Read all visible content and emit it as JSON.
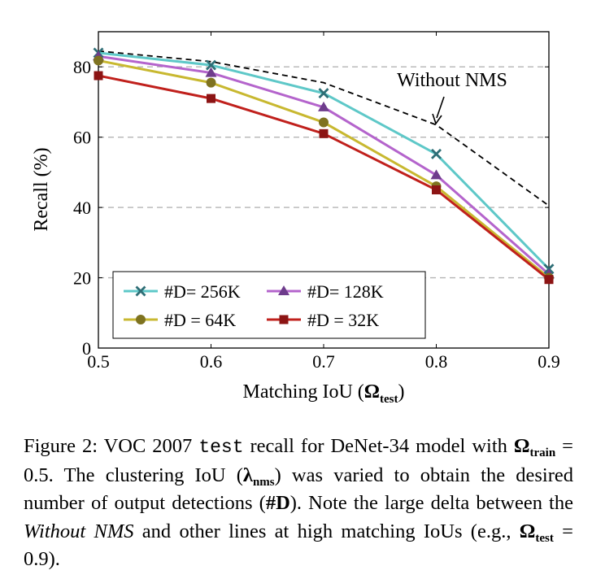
{
  "chart_data": {
    "type": "line",
    "xlabel_main": "Matching IoU (",
    "xlabel_symbol": "Ω",
    "xlabel_sub": "test",
    "xlabel_close": ")",
    "ylabel": "Recall (%)",
    "x": [
      0.5,
      0.6,
      0.7,
      0.8,
      0.9
    ],
    "x_tick_labels": [
      "0.5",
      "0.6",
      "0.7",
      "0.8",
      "0.9"
    ],
    "y_ticks": [
      0,
      20,
      40,
      60,
      80
    ],
    "xlim": [
      0.5,
      0.9
    ],
    "ylim": [
      0,
      90
    ],
    "grid": "horizontal dashed at y ticks",
    "legend_position": "bottom-left",
    "series": [
      {
        "name": "#D= 256K",
        "color": "#5ec8c8",
        "marker": "x",
        "values": [
          84.0,
          80.5,
          72.5,
          55.2,
          22.5
        ]
      },
      {
        "name": "#D= 128K",
        "color": "#b464cc",
        "marker": "triangle",
        "values": [
          83.0,
          78.3,
          68.5,
          49.2,
          21.0
        ]
      },
      {
        "name": "#D = 64K",
        "color": "#c8b830",
        "marker": "circle",
        "values": [
          81.8,
          75.5,
          64.2,
          46.0,
          20.0
        ]
      },
      {
        "name": "#D = 32K",
        "color": "#c0201c",
        "marker": "square",
        "values": [
          77.5,
          71.0,
          61.0,
          45.0,
          19.5
        ]
      }
    ],
    "baseline": {
      "color": "#000000",
      "style": "dashed",
      "values": [
        84.5,
        81.5,
        75.5,
        63.5,
        40.5
      ]
    },
    "annotation": {
      "text": "Without NMS",
      "points_to_x": 0.8
    }
  },
  "caption": {
    "figure_label": "Figure 2:",
    "part1": " VOC 2007 ",
    "code_word": "test",
    "part2": " recall for DeNet-34 model with ",
    "omega": "Ω",
    "train_sub": "train",
    "part3": " = 0.5.  The clustering IoU (",
    "lambda": "λ",
    "nms_sub": "nms",
    "part4": ") was varied to obtain the desired number of output detections (",
    "d_bold": "#D",
    "part5": "). Note the large delta between the ",
    "italic_phrase": "Without NMS",
    "part6": " and other lines at high matching IoUs (e.g., ",
    "omega2": "Ω",
    "test_sub": "test",
    "part7": " = 0.9)."
  }
}
